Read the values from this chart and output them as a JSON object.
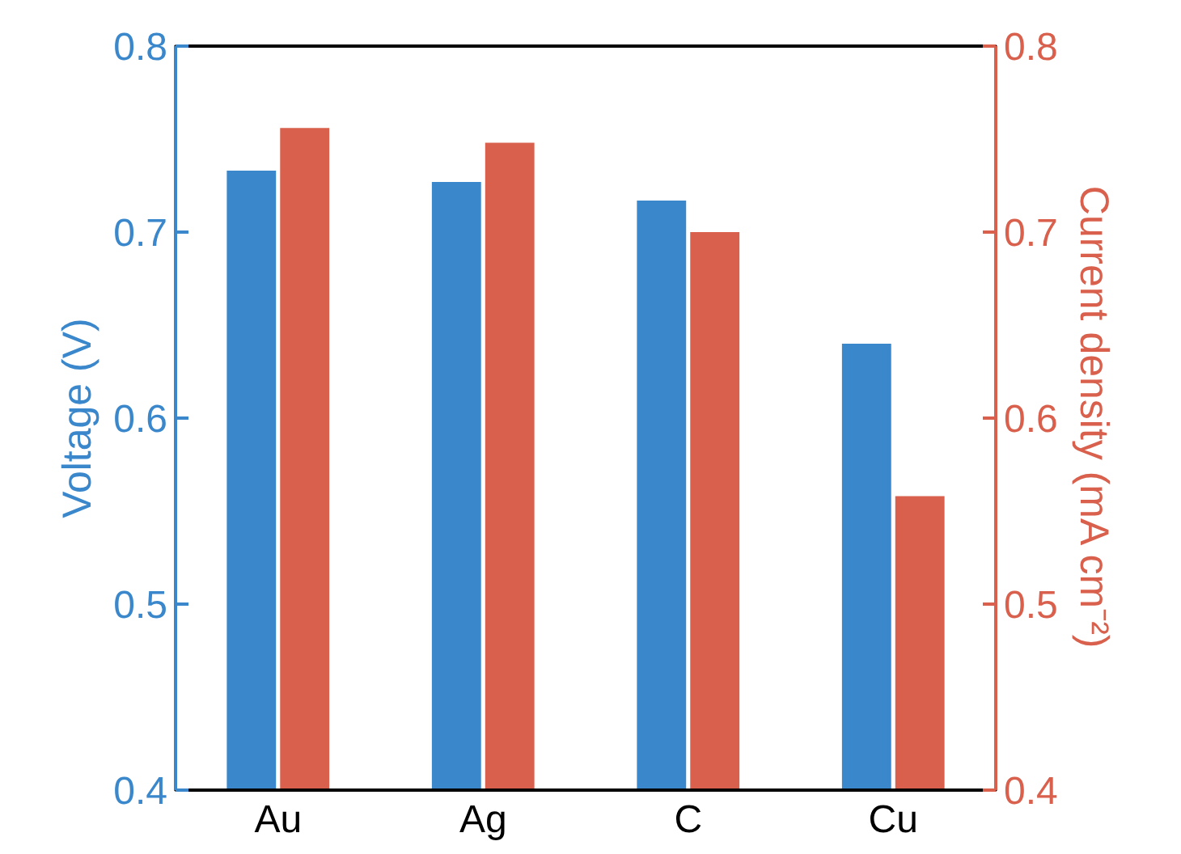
{
  "chart_data": {
    "type": "bar",
    "categories": [
      "Au",
      "Ag",
      "C",
      "Cu"
    ],
    "ylabel": "Voltage (V)",
    "y2label": "Current density (mA cm⁻²)",
    "ylim": [
      0.4,
      0.8
    ],
    "yticks": [
      0.4,
      0.5,
      0.6,
      0.7,
      0.8
    ],
    "y2lim": [
      0.4,
      0.8
    ],
    "y2ticks": [
      0.4,
      0.5,
      0.6,
      0.7,
      0.8
    ],
    "grid": false,
    "series": [
      {
        "color": "#3a87cb",
        "values": [
          0.733,
          0.727,
          0.717,
          0.64
        ]
      },
      {
        "color": "#d9604c",
        "values": [
          0.756,
          0.748,
          0.7,
          0.558
        ],
        "axis": "y2"
      }
    ]
  }
}
